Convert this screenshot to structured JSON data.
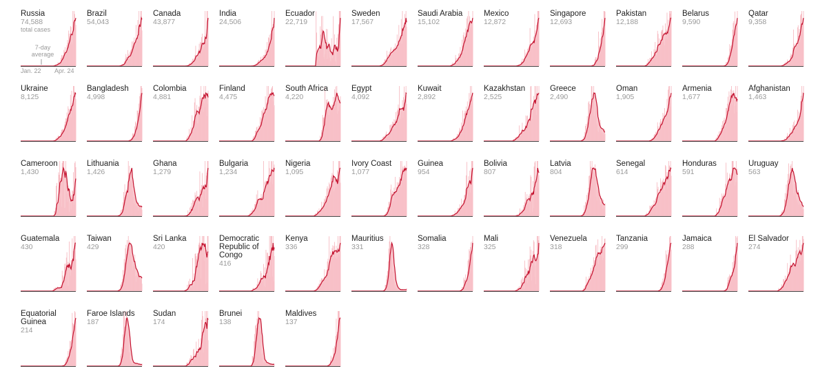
{
  "chart_data": {
    "type": "area",
    "x_range": [
      "Jan. 22",
      "Apr. 24"
    ],
    "annotation": "7-day average",
    "first_subtitle": "total cases",
    "colors": {
      "bars": "#f6b3bb",
      "fill": "#f8c1c8",
      "line": "#c4122f",
      "axis": "#444444"
    },
    "countries": [
      {
        "name": "Russia",
        "total": "74,588",
        "shape": "late"
      },
      {
        "name": "Brazil",
        "total": "54,043",
        "shape": "late"
      },
      {
        "name": "Canada",
        "total": "43,877",
        "shape": "late"
      },
      {
        "name": "India",
        "total": "24,506",
        "shape": "late"
      },
      {
        "name": "Ecuador",
        "total": "22,719",
        "shape": "ecuador"
      },
      {
        "name": "Sweden",
        "total": "17,567",
        "shape": "mid"
      },
      {
        "name": "Saudi Arabia",
        "total": "15,102",
        "shape": "late"
      },
      {
        "name": "Mexico",
        "total": "12,872",
        "shape": "late"
      },
      {
        "name": "Singapore",
        "total": "12,693",
        "shape": "verylate"
      },
      {
        "name": "Pakistan",
        "total": "12,188",
        "shape": "mid"
      },
      {
        "name": "Belarus",
        "total": "9,590",
        "shape": "verylate"
      },
      {
        "name": "Qatar",
        "total": "9,358",
        "shape": "late"
      },
      {
        "name": "Ukraine",
        "total": "8,125",
        "shape": "late"
      },
      {
        "name": "Bangladesh",
        "total": "4,998",
        "shape": "verylate"
      },
      {
        "name": "Colombia",
        "total": "4,881",
        "shape": "plateau"
      },
      {
        "name": "Finland",
        "total": "4,475",
        "shape": "plateau"
      },
      {
        "name": "South Africa",
        "total": "4,220",
        "shape": "southafrica"
      },
      {
        "name": "Egypt",
        "total": "4,092",
        "shape": "mid"
      },
      {
        "name": "Kuwait",
        "total": "2,892",
        "shape": "late"
      },
      {
        "name": "Kazakhstan",
        "total": "2,525",
        "shape": "mid"
      },
      {
        "name": "Greece",
        "total": "2,490",
        "shape": "hump"
      },
      {
        "name": "Oman",
        "total": "1,905",
        "shape": "late"
      },
      {
        "name": "Armenia",
        "total": "1,677",
        "shape": "plateau"
      },
      {
        "name": "Afghanistan",
        "total": "1,463",
        "shape": "late"
      },
      {
        "name": "Cameroon",
        "total": "1,430",
        "shape": "cameroon"
      },
      {
        "name": "Lithuania",
        "total": "1,426",
        "shape": "hump"
      },
      {
        "name": "Ghana",
        "total": "1,279",
        "shape": "noisy"
      },
      {
        "name": "Bulgaria",
        "total": "1,234",
        "shape": "mid"
      },
      {
        "name": "Nigeria",
        "total": "1,095",
        "shape": "mid"
      },
      {
        "name": "Ivory Coast",
        "total": "1,077",
        "shape": "plateau"
      },
      {
        "name": "Guinea",
        "total": "954",
        "shape": "late"
      },
      {
        "name": "Bolivia",
        "total": "807",
        "shape": "noisy"
      },
      {
        "name": "Latvia",
        "total": "804",
        "shape": "hump"
      },
      {
        "name": "Senegal",
        "total": "614",
        "shape": "mid"
      },
      {
        "name": "Honduras",
        "total": "591",
        "shape": "plateau"
      },
      {
        "name": "Uruguay",
        "total": "563",
        "shape": "hump"
      },
      {
        "name": "Guatemala",
        "total": "430",
        "shape": "noisy"
      },
      {
        "name": "Taiwan",
        "total": "429",
        "shape": "hump"
      },
      {
        "name": "Sri Lanka",
        "total": "420",
        "shape": "noisy"
      },
      {
        "name": "Democratic Republic of Congo",
        "total": "416",
        "shape": "noisy"
      },
      {
        "name": "Kenya",
        "total": "336",
        "shape": "mid"
      },
      {
        "name": "Mauritius",
        "total": "331",
        "shape": "spike"
      },
      {
        "name": "Somalia",
        "total": "328",
        "shape": "verylate"
      },
      {
        "name": "Mali",
        "total": "325",
        "shape": "noisy"
      },
      {
        "name": "Venezuela",
        "total": "318",
        "shape": "plateau"
      },
      {
        "name": "Tanzania",
        "total": "299",
        "shape": "verylate"
      },
      {
        "name": "Jamaica",
        "total": "288",
        "shape": "verylate"
      },
      {
        "name": "El Salvador",
        "total": "274",
        "shape": "mid"
      },
      {
        "name": "Equatorial Guinea",
        "total": "214",
        "shape": "verylate"
      },
      {
        "name": "Faroe Islands",
        "total": "187",
        "shape": "spike"
      },
      {
        "name": "Sudan",
        "total": "174",
        "shape": "noisy"
      },
      {
        "name": "Brunei",
        "total": "138",
        "shape": "spike"
      },
      {
        "name": "Maldives",
        "total": "137",
        "shape": "verylate"
      }
    ]
  }
}
